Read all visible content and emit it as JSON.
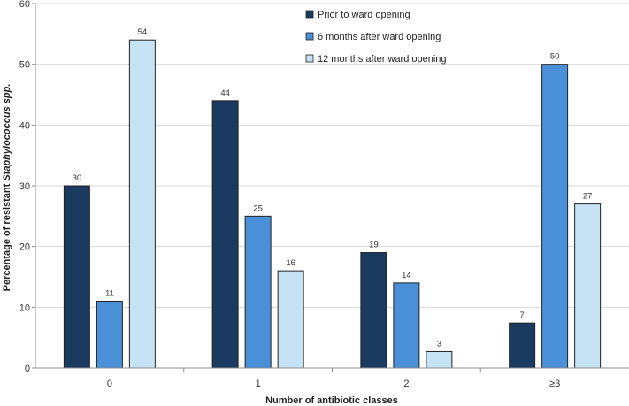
{
  "chart_data": {
    "type": "bar",
    "categories": [
      "0",
      "1",
      "2",
      "≥3"
    ],
    "series": [
      {
        "name": "Prior to ward opening",
        "values": [
          30,
          44,
          19,
          7
        ],
        "color": "#1b3a5f"
      },
      {
        "name": "6 months after ward opening",
        "values": [
          11,
          25,
          14,
          50
        ],
        "color": "#4a90d9"
      },
      {
        "name": "12 months after ward opening",
        "values": [
          54,
          16,
          3,
          27
        ],
        "color": "#c6e2f5"
      }
    ],
    "plotted_values": [
      [
        30,
        44,
        19,
        7.4
      ],
      [
        11,
        25,
        14,
        50
      ],
      [
        54,
        16,
        2.7,
        27
      ]
    ],
    "xlabel": "Number of antibiotic classes",
    "ylabel_prefix": "Percentage of resistant ",
    "ylabel_italic": "Staphylococcus spp.",
    "ylim": [
      0,
      60
    ],
    "yticks": [
      0,
      10,
      20,
      30,
      40,
      50,
      60
    ],
    "grid": true,
    "legend_position": "top-right"
  }
}
